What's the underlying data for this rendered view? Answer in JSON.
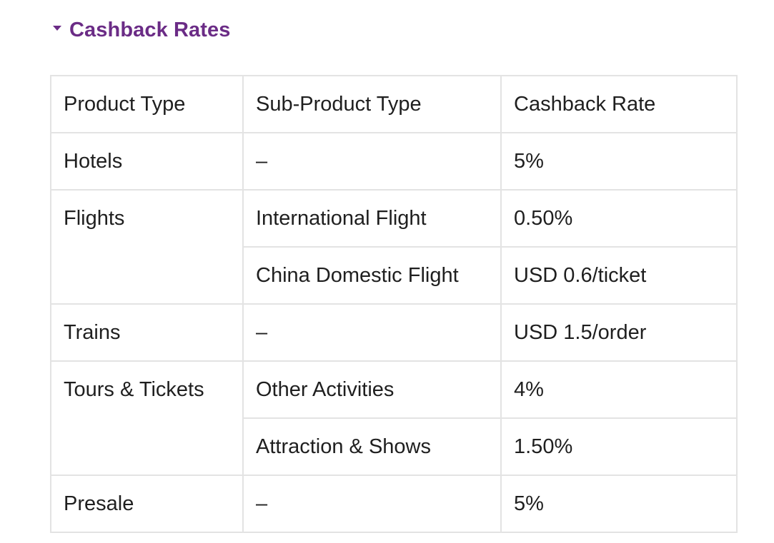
{
  "section": {
    "title": "Cashback Rates",
    "expanded": true,
    "accent_color": "#6b2c86",
    "toggle_icon": "caret-down-icon"
  },
  "table": {
    "headers": [
      "Product Type",
      "Sub-Product Type",
      "Cashback Rate"
    ],
    "rows": [
      {
        "product": "Hotels",
        "product_rowspan": 1,
        "sub": "–",
        "rate": "5%"
      },
      {
        "product": "Flights",
        "product_rowspan": 2,
        "sub": "International Flight",
        "rate": "0.50%"
      },
      {
        "product": null,
        "product_rowspan": 0,
        "sub": "China Domestic Flight",
        "rate": "USD 0.6/ticket"
      },
      {
        "product": "Trains",
        "product_rowspan": 1,
        "sub": "–",
        "rate": "USD 1.5/order"
      },
      {
        "product": "Tours & Tickets",
        "product_rowspan": 2,
        "sub": "Other Activities",
        "rate": "4%"
      },
      {
        "product": null,
        "product_rowspan": 0,
        "sub": "Attraction & Shows",
        "rate": "1.50%"
      },
      {
        "product": "Presale",
        "product_rowspan": 1,
        "sub": "–",
        "rate": "5%"
      }
    ]
  }
}
